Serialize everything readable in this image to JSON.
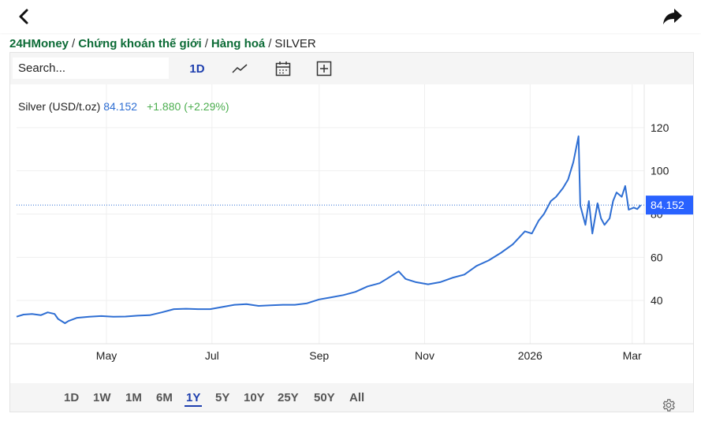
{
  "breadcrumb": {
    "items": [
      "24HMoney",
      "Chứng khoán thế giới",
      "Hàng hoá"
    ],
    "current": "SILVER"
  },
  "toolbar": {
    "search_placeholder": "Search...",
    "interval_label": "1D",
    "chart_type_icon": "line-chart-icon",
    "calendar_icon": "calendar-icon",
    "compare_icon": "plus-square-icon"
  },
  "legend": {
    "symbol": "Silver (USD/t.oz)",
    "price": "84.152",
    "change": "+1.880",
    "change_pct": "(+2.29%)"
  },
  "range_buttons": [
    "1D",
    "1W",
    "1M",
    "6M",
    "1Y",
    "5Y",
    "10Y",
    "25Y",
    "50Y",
    "All"
  ],
  "active_range": "1Y",
  "colors": {
    "line": "#2e6ed3",
    "up": "#4cae4f",
    "accent": "#1e3fae",
    "price_label_bg": "#2962ff",
    "brand": "#0c6b36"
  },
  "chart_data": {
    "type": "line",
    "series": [
      {
        "name": "Silver (USD/t.oz)",
        "x": [
          "2025-03-10",
          "2025-03-14",
          "2025-03-19",
          "2025-03-24",
          "2025-03-28",
          "2025-04-01",
          "2025-04-03",
          "2025-04-07",
          "2025-04-09",
          "2025-04-14",
          "2025-04-21",
          "2025-04-28",
          "2025-05-05",
          "2025-05-12",
          "2025-05-19",
          "2025-05-26",
          "2025-06-02",
          "2025-06-09",
          "2025-06-16",
          "2025-06-23",
          "2025-06-30",
          "2025-07-07",
          "2025-07-14",
          "2025-07-21",
          "2025-07-28",
          "2025-08-04",
          "2025-08-11",
          "2025-08-18",
          "2025-08-25",
          "2025-09-01",
          "2025-09-08",
          "2025-09-15",
          "2025-09-22",
          "2025-09-29",
          "2025-10-06",
          "2025-10-10",
          "2025-10-14",
          "2025-10-17",
          "2025-10-21",
          "2025-10-27",
          "2025-11-03",
          "2025-11-10",
          "2025-11-17",
          "2025-11-24",
          "2025-12-01",
          "2025-12-08",
          "2025-12-15",
          "2025-12-22",
          "2025-12-29",
          "2026-01-02",
          "2026-01-06",
          "2026-01-09",
          "2026-01-13",
          "2026-01-16",
          "2026-01-20",
          "2026-01-23",
          "2026-01-26",
          "2026-01-29",
          "2026-01-30",
          "2026-02-02",
          "2026-02-04",
          "2026-02-06",
          "2026-02-09",
          "2026-02-11",
          "2026-02-13",
          "2026-02-16",
          "2026-02-18",
          "2026-02-20",
          "2026-02-23",
          "2026-02-25",
          "2026-02-27",
          "2026-03-02",
          "2026-03-04",
          "2026-03-06"
        ],
        "y": [
          32.5,
          33.5,
          33.8,
          33.2,
          34.5,
          33.8,
          31.5,
          29.5,
          30.5,
          32.0,
          32.5,
          32.8,
          32.5,
          32.6,
          33.0,
          33.2,
          34.5,
          36.0,
          36.2,
          36.0,
          36.0,
          37.0,
          38.0,
          38.3,
          37.5,
          37.8,
          38.0,
          38.0,
          38.7,
          40.5,
          41.5,
          42.5,
          44.0,
          46.5,
          48.0,
          50.0,
          52.0,
          53.5,
          50.0,
          48.5,
          47.5,
          48.5,
          50.5,
          52.0,
          56.0,
          58.5,
          62.0,
          66.0,
          72.0,
          71.0,
          77.0,
          80.0,
          86.0,
          88.0,
          92.0,
          96.0,
          104.0,
          116.0,
          84.0,
          75.0,
          86.0,
          71.0,
          85.0,
          78.0,
          75.0,
          78.0,
          86.0,
          90.0,
          88.0,
          93.0,
          82.0,
          83.0,
          82.3,
          84.152
        ]
      }
    ],
    "x_ticks": [
      "May",
      "Jul",
      "Sep",
      "Nov",
      "2026",
      "Mar"
    ],
    "y_ticks": [
      40,
      60,
      80,
      100,
      120
    ],
    "last_value_label": "84.152",
    "last_value_line": 84.152,
    "ylim": [
      20,
      140
    ],
    "grid": true,
    "y_axis_side": "right"
  }
}
